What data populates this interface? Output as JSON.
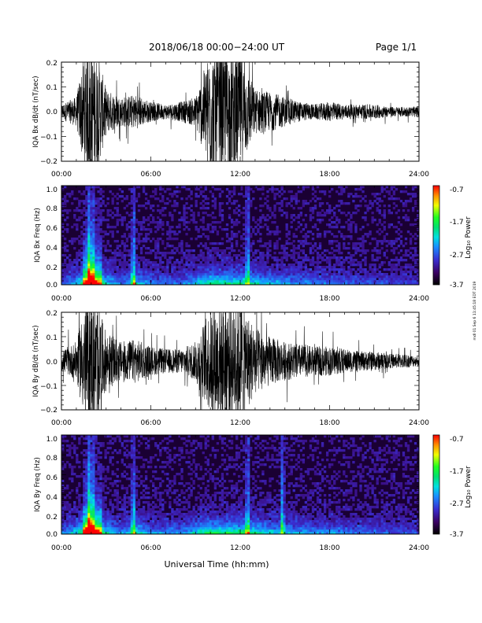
{
  "header": {
    "title": "2018/06/18   00:00−24:00  UT",
    "page": "Page 1/1"
  },
  "side_note": "mdl 01 Sep 6 11:45:18 EDT 2019",
  "x_axis_title": "Universal Time (hh:mm)",
  "colorbar": {
    "label": "Log₁₀ Power",
    "ticks": [
      "-0.7",
      "-1.7",
      "-2.7",
      "-3.7"
    ]
  },
  "chart_data": [
    {
      "type": "line",
      "ylabel": "IQA Bx dB/dt (nT/sec)",
      "xlim": [
        "00:00",
        "24:00"
      ],
      "xticks": [
        "00:00",
        "06:00",
        "12:00",
        "18:00",
        "24:00"
      ],
      "ylim": [
        -0.2,
        0.2
      ],
      "yticks": [
        "0.2",
        "0.1",
        "0.0",
        "−0.1",
        "−0.2"
      ],
      "series": [
        {
          "x": [
            "00:00",
            "01:00",
            "01:30",
            "02:00",
            "02:30",
            "03:00",
            "04:00",
            "05:00",
            "06:00",
            "07:00",
            "08:00",
            "09:00",
            "10:00",
            "11:00",
            "12:00",
            "13:00",
            "14:00",
            "15:00",
            "16:00",
            "17:00",
            "18:00",
            "19:00",
            "20:00",
            "21:00",
            "22:00",
            "23:00",
            "24:00"
          ],
          "amplitude": [
            0.03,
            0.06,
            0.22,
            0.25,
            0.22,
            0.09,
            0.06,
            0.07,
            0.04,
            0.03,
            0.04,
            0.06,
            0.25,
            0.25,
            0.24,
            0.09,
            0.08,
            0.06,
            0.04,
            0.03,
            0.04,
            0.03,
            0.03,
            0.03,
            0.02,
            0.02,
            0.02
          ]
        }
      ]
    },
    {
      "type": "heatmap",
      "ylabel": "IQA Bx Freq (Hz)",
      "xlim": [
        "00:00",
        "24:00"
      ],
      "xticks": [
        "00:00",
        "06:00",
        "12:00",
        "18:00",
        "24:00"
      ],
      "ylim": [
        0.0,
        1.0
      ],
      "yticks": [
        "1.0",
        "0.8",
        "0.6",
        "0.4",
        "0.2",
        "0.0"
      ],
      "colorbar_range": [
        -3.7,
        -0.7
      ],
      "activity": {
        "x": [
          "00:00",
          "01:00",
          "02:00",
          "03:00",
          "04:00",
          "05:00",
          "06:00",
          "08:00",
          "10:00",
          "11:00",
          "12:00",
          "13:00",
          "14:00",
          "16:00",
          "18:00",
          "20:00",
          "22:00",
          "24:00"
        ],
        "level": [
          0.25,
          0.45,
          0.95,
          0.55,
          0.3,
          0.55,
          0.3,
          0.3,
          0.65,
          0.6,
          0.6,
          0.55,
          0.45,
          0.35,
          0.3,
          0.25,
          0.2,
          0.2
        ]
      },
      "vertical_streaks": [
        "01:50",
        "02:05",
        "04:50",
        "12:30"
      ]
    },
    {
      "type": "line",
      "ylabel": "IQA By dB/dt (nT/sec)",
      "xlim": [
        "00:00",
        "24:00"
      ],
      "xticks": [
        "00:00",
        "06:00",
        "12:00",
        "18:00",
        "24:00"
      ],
      "ylim": [
        -0.2,
        0.2
      ],
      "yticks": [
        "0.2",
        "0.1",
        "0.0",
        "−0.1",
        "−0.2"
      ],
      "series": [
        {
          "x": [
            "00:00",
            "01:00",
            "01:30",
            "02:00",
            "02:30",
            "03:00",
            "04:00",
            "05:00",
            "06:00",
            "07:00",
            "08:00",
            "09:00",
            "10:00",
            "11:00",
            "12:00",
            "13:00",
            "14:00",
            "15:00",
            "16:00",
            "17:00",
            "18:00",
            "19:00",
            "20:00",
            "21:00",
            "22:00",
            "23:00",
            "24:00"
          ],
          "amplitude": [
            0.04,
            0.08,
            0.22,
            0.25,
            0.22,
            0.12,
            0.08,
            0.09,
            0.06,
            0.05,
            0.05,
            0.08,
            0.22,
            0.25,
            0.25,
            0.14,
            0.1,
            0.08,
            0.07,
            0.06,
            0.06,
            0.05,
            0.04,
            0.04,
            0.03,
            0.03,
            0.02
          ]
        }
      ]
    },
    {
      "type": "heatmap",
      "ylabel": "IQA By Freq (Hz)",
      "xlim": [
        "00:00",
        "24:00"
      ],
      "xticks": [
        "00:00",
        "06:00",
        "12:00",
        "18:00",
        "24:00"
      ],
      "ylim": [
        0.0,
        1.0
      ],
      "yticks": [
        "1.0",
        "0.8",
        "0.6",
        "0.4",
        "0.2",
        "0.0"
      ],
      "colorbar_range": [
        -3.7,
        -0.7
      ],
      "activity": {
        "x": [
          "00:00",
          "01:00",
          "02:00",
          "03:00",
          "04:00",
          "05:00",
          "06:00",
          "08:00",
          "10:00",
          "11:00",
          "12:00",
          "13:00",
          "14:00",
          "16:00",
          "18:00",
          "20:00",
          "22:00",
          "24:00"
        ],
        "level": [
          0.3,
          0.5,
          0.95,
          0.6,
          0.35,
          0.6,
          0.35,
          0.35,
          0.7,
          0.65,
          0.65,
          0.6,
          0.5,
          0.4,
          0.35,
          0.3,
          0.25,
          0.2
        ]
      },
      "vertical_streaks": [
        "01:50",
        "02:05",
        "04:50",
        "12:30",
        "14:50"
      ]
    }
  ]
}
